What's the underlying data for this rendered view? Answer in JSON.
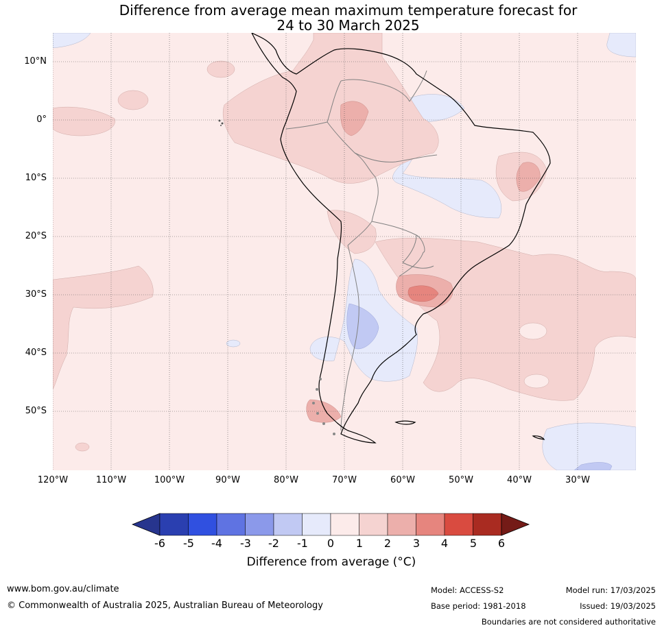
{
  "title": {
    "line1": "Difference from average mean maximum temperature forecast for",
    "line2": "24 to 30 March 2025"
  },
  "map": {
    "lat_labels": [
      "10°N",
      "0°",
      "10°S",
      "20°S",
      "30°S",
      "40°S",
      "50°S"
    ],
    "lon_labels": [
      "120°W",
      "110°W",
      "100°W",
      "90°W",
      "80°W",
      "70°W",
      "60°W",
      "50°W",
      "40°W",
      "30°W"
    ],
    "colors": {
      "base": "#fcebea",
      "light_red": "#f5d3d1",
      "mid_red": "#ecafab",
      "light_blue": "#e6eafb",
      "mid_blue": "#c1c9f3",
      "coast": "#000000",
      "borders": "#808080"
    }
  },
  "legend": {
    "ticks": [
      "-6",
      "-5",
      "-4",
      "-3",
      "-2",
      "-1",
      "0",
      "1",
      "2",
      "3",
      "4",
      "5",
      "6"
    ],
    "colors": [
      "#27358e",
      "#2a3fb0",
      "#3050e0",
      "#5f73e2",
      "#8b99ea",
      "#c1c9f3",
      "#e6eafb",
      "#fcebea",
      "#f5d3d1",
      "#ecafab",
      "#e6857e",
      "#d94b40",
      "#a92b21",
      "#741b17"
    ],
    "label": "Difference from average (°C)"
  },
  "footer": {
    "website": "www.bom.gov.au/climate",
    "copyright": "© Commonwealth of Australia 2025, Australian Bureau of Meteorology",
    "model": "Model: ACCESS-S2",
    "base_period": "Base period: 1981-2018",
    "model_run": "Model run: 17/03/2025",
    "issued": "Issued: 19/03/2025",
    "boundaries_note": "Boundaries are not considered authoritative"
  }
}
